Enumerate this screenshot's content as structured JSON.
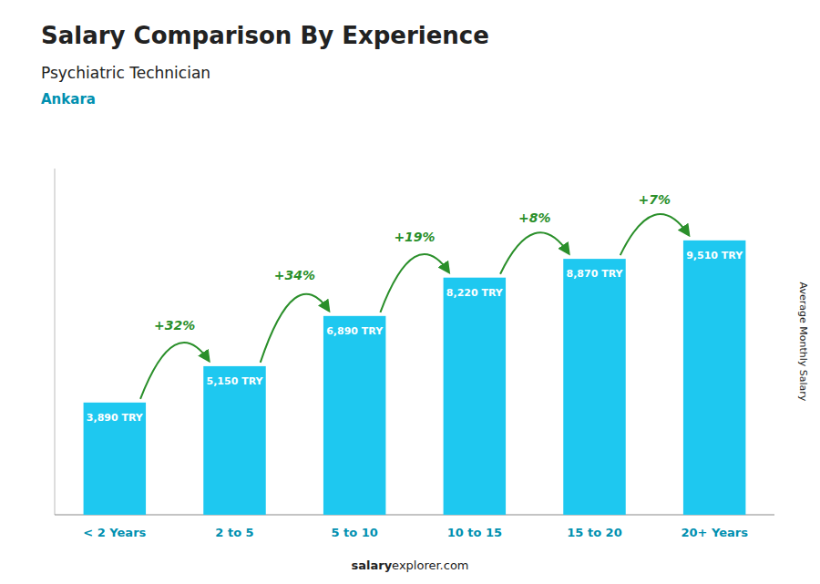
{
  "chart_data": {
    "type": "bar",
    "title": "Salary Comparison By Experience",
    "subtitle": "Psychiatric Technician",
    "city": "Ankara",
    "ylabel": "Average Monthly Salary",
    "footer": [
      "salary",
      "explorer.com"
    ],
    "categories": [
      "< 2 Years",
      "2 to 5",
      "5 to 10",
      "10 to 15",
      "15 to 20",
      "20+ Years"
    ],
    "values": [
      3890,
      5150,
      6890,
      8220,
      8870,
      9510
    ],
    "value_labels": [
      "3,890 TRY",
      "5,150 TRY",
      "6,890 TRY",
      "8,220 TRY",
      "8,870 TRY",
      "9,510 TRY"
    ],
    "data_labels": true,
    "change_labels": [
      null,
      "+32%",
      "+34%",
      "+19%",
      "+8%",
      "+7%"
    ],
    "color": "#1EC8F0",
    "ylim": [
      0,
      12000
    ],
    "grid": false,
    "tick_labels": "x"
  }
}
